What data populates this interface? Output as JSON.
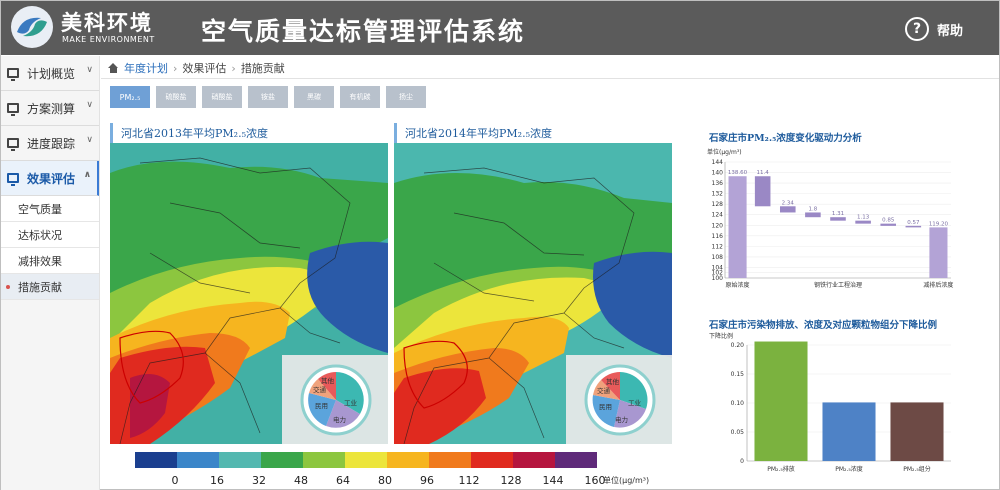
{
  "header": {
    "brand_cn": "美科环境",
    "brand_en": "MAKE ENVIRONMENT",
    "title": "空气质量达标管理评估系统",
    "help_label": "帮助"
  },
  "sidebar": {
    "items": [
      {
        "label": "计划概览"
      },
      {
        "label": "方案测算"
      },
      {
        "label": "进度跟踪"
      },
      {
        "label": "效果评估"
      }
    ],
    "sub_items": [
      {
        "label": "空气质量"
      },
      {
        "label": "达标状况"
      },
      {
        "label": "减排效果"
      },
      {
        "label": "措施贡献"
      }
    ]
  },
  "breadcrumb": {
    "home": "年度计划",
    "mid": "效果评估",
    "current": "措施贡献"
  },
  "tabs": [
    {
      "label": "PM₂.₅"
    },
    {
      "label": "硫酸盐"
    },
    {
      "label": "硝酸盐"
    },
    {
      "label": "铵盐"
    },
    {
      "label": "黑碳"
    },
    {
      "label": "有机碳"
    },
    {
      "label": "扬尘"
    }
  ],
  "maps": [
    {
      "title": "河北省2013年平均PM₂.₅浓度"
    },
    {
      "title": "河北省2014年平均PM₂.₅浓度"
    }
  ],
  "pie_labels": {
    "industry": "工业",
    "power": "电力",
    "residential": "民用",
    "transport": "交通",
    "other": "其他"
  },
  "colorbar": {
    "ticks": [
      "0",
      "16",
      "32",
      "48",
      "64",
      "80",
      "96",
      "112",
      "128",
      "144",
      "160"
    ],
    "colors": [
      "#1b3f8f",
      "#3b86c9",
      "#53b8b0",
      "#3aa64a",
      "#8cc63f",
      "#ece53b",
      "#f6b51f",
      "#f07a1d",
      "#e02a1f",
      "#b5163f",
      "#5f2a7a"
    ],
    "unit": "单位(μg/m³)"
  },
  "chart_data": [
    {
      "type": "bar",
      "title": "石家庄市PM₂.₅浓度变化驱动力分析",
      "ylabel": "单位(μg/m³)",
      "ylim": [
        100,
        144
      ],
      "yticks": [
        100,
        102,
        104,
        108,
        112,
        116,
        120,
        124,
        128,
        132,
        136,
        140,
        144
      ],
      "x_labels": [
        "原始浓度",
        "钢铁行业工程治理",
        "减排后浓度"
      ],
      "bars": [
        {
          "from": 100,
          "to": 138.6,
          "label": "138.60",
          "color": "#b3a3d6"
        },
        {
          "from": 138.6,
          "to": 127.2,
          "label": "11.4",
          "color": "#9a88c5"
        },
        {
          "from": 127.2,
          "to": 124.86,
          "label": "2.34",
          "color": "#9a88c5"
        },
        {
          "from": 124.86,
          "to": 123.06,
          "label": "1.8",
          "color": "#9a88c5"
        },
        {
          "from": 123.06,
          "to": 121.75,
          "label": "1.31",
          "color": "#9a88c5"
        },
        {
          "from": 121.75,
          "to": 120.62,
          "label": "1.13",
          "color": "#9a88c5"
        },
        {
          "from": 120.62,
          "to": 119.77,
          "label": "0.85",
          "color": "#9a88c5"
        },
        {
          "from": 119.77,
          "to": 119.2,
          "label": "0.57",
          "color": "#9a88c5"
        },
        {
          "from": 100,
          "to": 119.2,
          "label": "119.20",
          "color": "#b3a3d6"
        }
      ]
    },
    {
      "type": "bar",
      "title": "石家庄市污染物排放、浓度及对应颗粒物组分下降比例",
      "ylabel": "下降比例",
      "ylim": [
        0,
        0.2
      ],
      "yticks": [
        "0",
        "0.05",
        "0.10",
        "0.15",
        "0.20"
      ],
      "categories": [
        "PM₂.₅排放",
        "PM₂.₅浓度",
        "PM₂.₅组分"
      ],
      "values": [
        0.206,
        0.101,
        0.101
      ],
      "colors": [
        "#7bb23f",
        "#4e82c6",
        "#6d4a45"
      ]
    }
  ]
}
